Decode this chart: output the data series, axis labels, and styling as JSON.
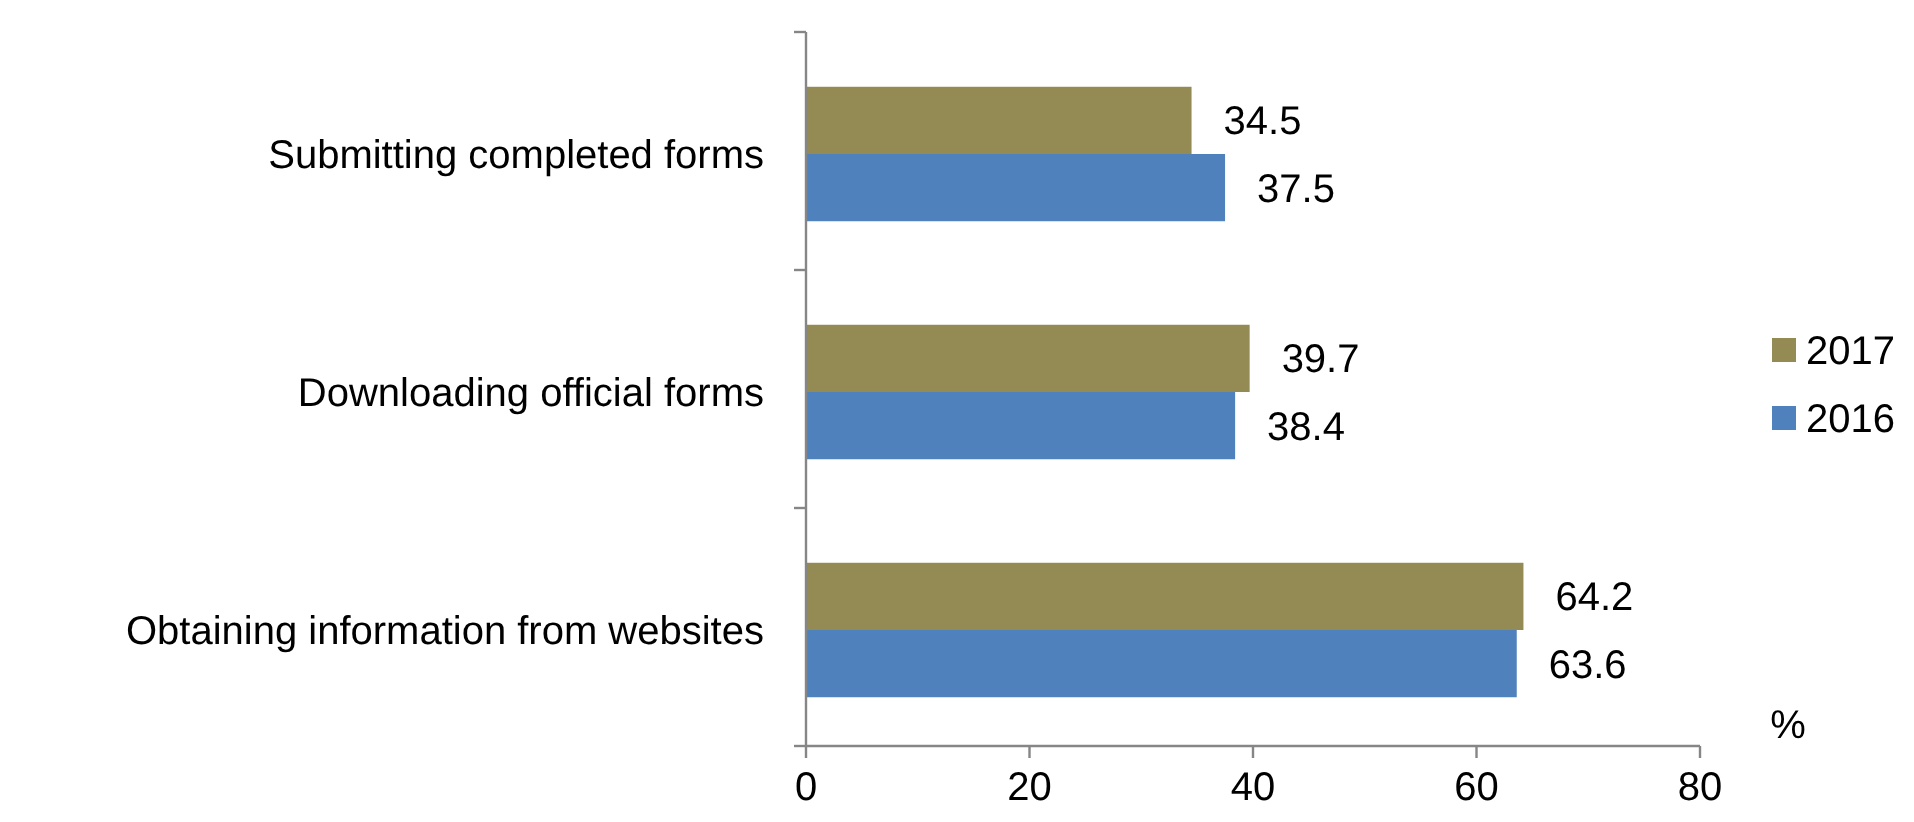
{
  "chart_data": {
    "type": "bar",
    "orientation": "horizontal",
    "categories": [
      "Submitting completed forms",
      "Downloading official forms",
      "Obtaining information from websites"
    ],
    "series": [
      {
        "name": "2017",
        "color": "#948a54",
        "values": [
          34.5,
          39.7,
          64.2
        ]
      },
      {
        "name": "2016",
        "color": "#4f81bd",
        "values": [
          37.5,
          38.4,
          63.6
        ]
      }
    ],
    "xlabel": "%",
    "xlim": [
      0,
      80
    ],
    "xticks": [
      0,
      20,
      40,
      60,
      80
    ],
    "data_labels": true,
    "legend": "right"
  }
}
